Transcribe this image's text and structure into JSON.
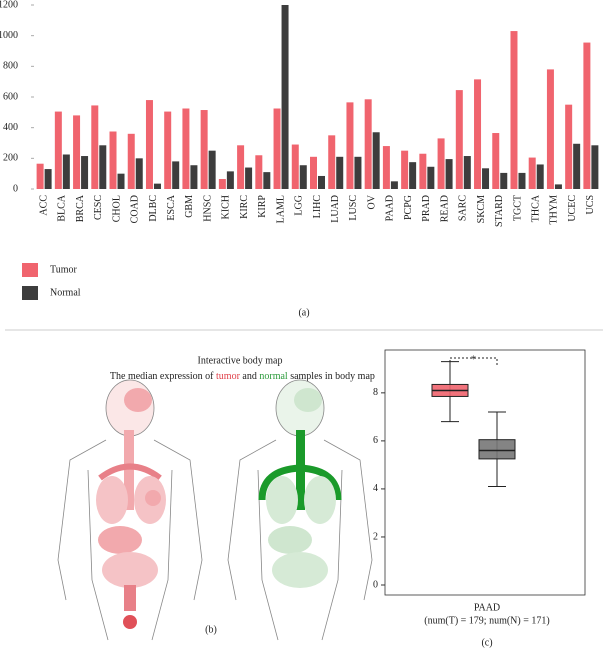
{
  "chart_data": [
    {
      "type": "bar",
      "panel_label": "(a)",
      "categories": [
        "ACC",
        "BLCA",
        "BRCA",
        "CESC",
        "CHOL",
        "COAD",
        "DLBC",
        "ESCA",
        "GBM",
        "HNSC",
        "KICH",
        "KIRC",
        "KIRP",
        "LAML",
        "LGG",
        "LIHC",
        "LUAD",
        "LUSC",
        "OV",
        "PAAD",
        "PCPG",
        "PRAD",
        "READ",
        "SARC",
        "SKCM",
        "STARD",
        "TGCT",
        "THCA",
        "THYM",
        "UCEC",
        "UCS"
      ],
      "series": [
        {
          "name": "Tumor",
          "color": "#f0646e",
          "values": [
            165,
            505,
            480,
            545,
            375,
            360,
            580,
            505,
            525,
            515,
            65,
            285,
            220,
            525,
            290,
            210,
            350,
            565,
            585,
            280,
            250,
            230,
            330,
            645,
            715,
            365,
            1030,
            205,
            780,
            550,
            955
          ]
        },
        {
          "name": "Normal",
          "color": "#3d3d3d",
          "values": [
            130,
            225,
            215,
            285,
            100,
            200,
            35,
            180,
            155,
            250,
            115,
            140,
            110,
            1200,
            155,
            85,
            210,
            210,
            370,
            50,
            175,
            145,
            195,
            215,
            135,
            105,
            105,
            160,
            30,
            295,
            285
          ]
        }
      ],
      "ylim": [
        0,
        1200
      ],
      "yticks": [
        0,
        200,
        400,
        600,
        800,
        1000,
        1200
      ]
    },
    {
      "type": "box",
      "panel_label": "(c)",
      "xlabel": "PAAD",
      "xlabel_note": "(num(T) = 179; num(N) = 171)",
      "significance": "*",
      "ylim": [
        0,
        10.2
      ],
      "yticks": [
        0,
        2,
        4,
        6,
        8
      ],
      "boxes": [
        {
          "color": "#f0646e",
          "whisker_low": 6.8,
          "q1": 7.85,
          "median": 8.1,
          "q3": 8.35,
          "whisker_high": 9.3
        },
        {
          "color": "#777777",
          "whisker_low": 4.1,
          "q1": 5.25,
          "median": 5.6,
          "q3": 6.05,
          "whisker_high": 7.2
        }
      ]
    }
  ],
  "body_map": {
    "title": "Interactive body map",
    "subtitle_parts": [
      "The median expression of ",
      "tumor",
      " and ",
      "normal",
      " samples in body map"
    ],
    "panel_label": "(b)"
  }
}
